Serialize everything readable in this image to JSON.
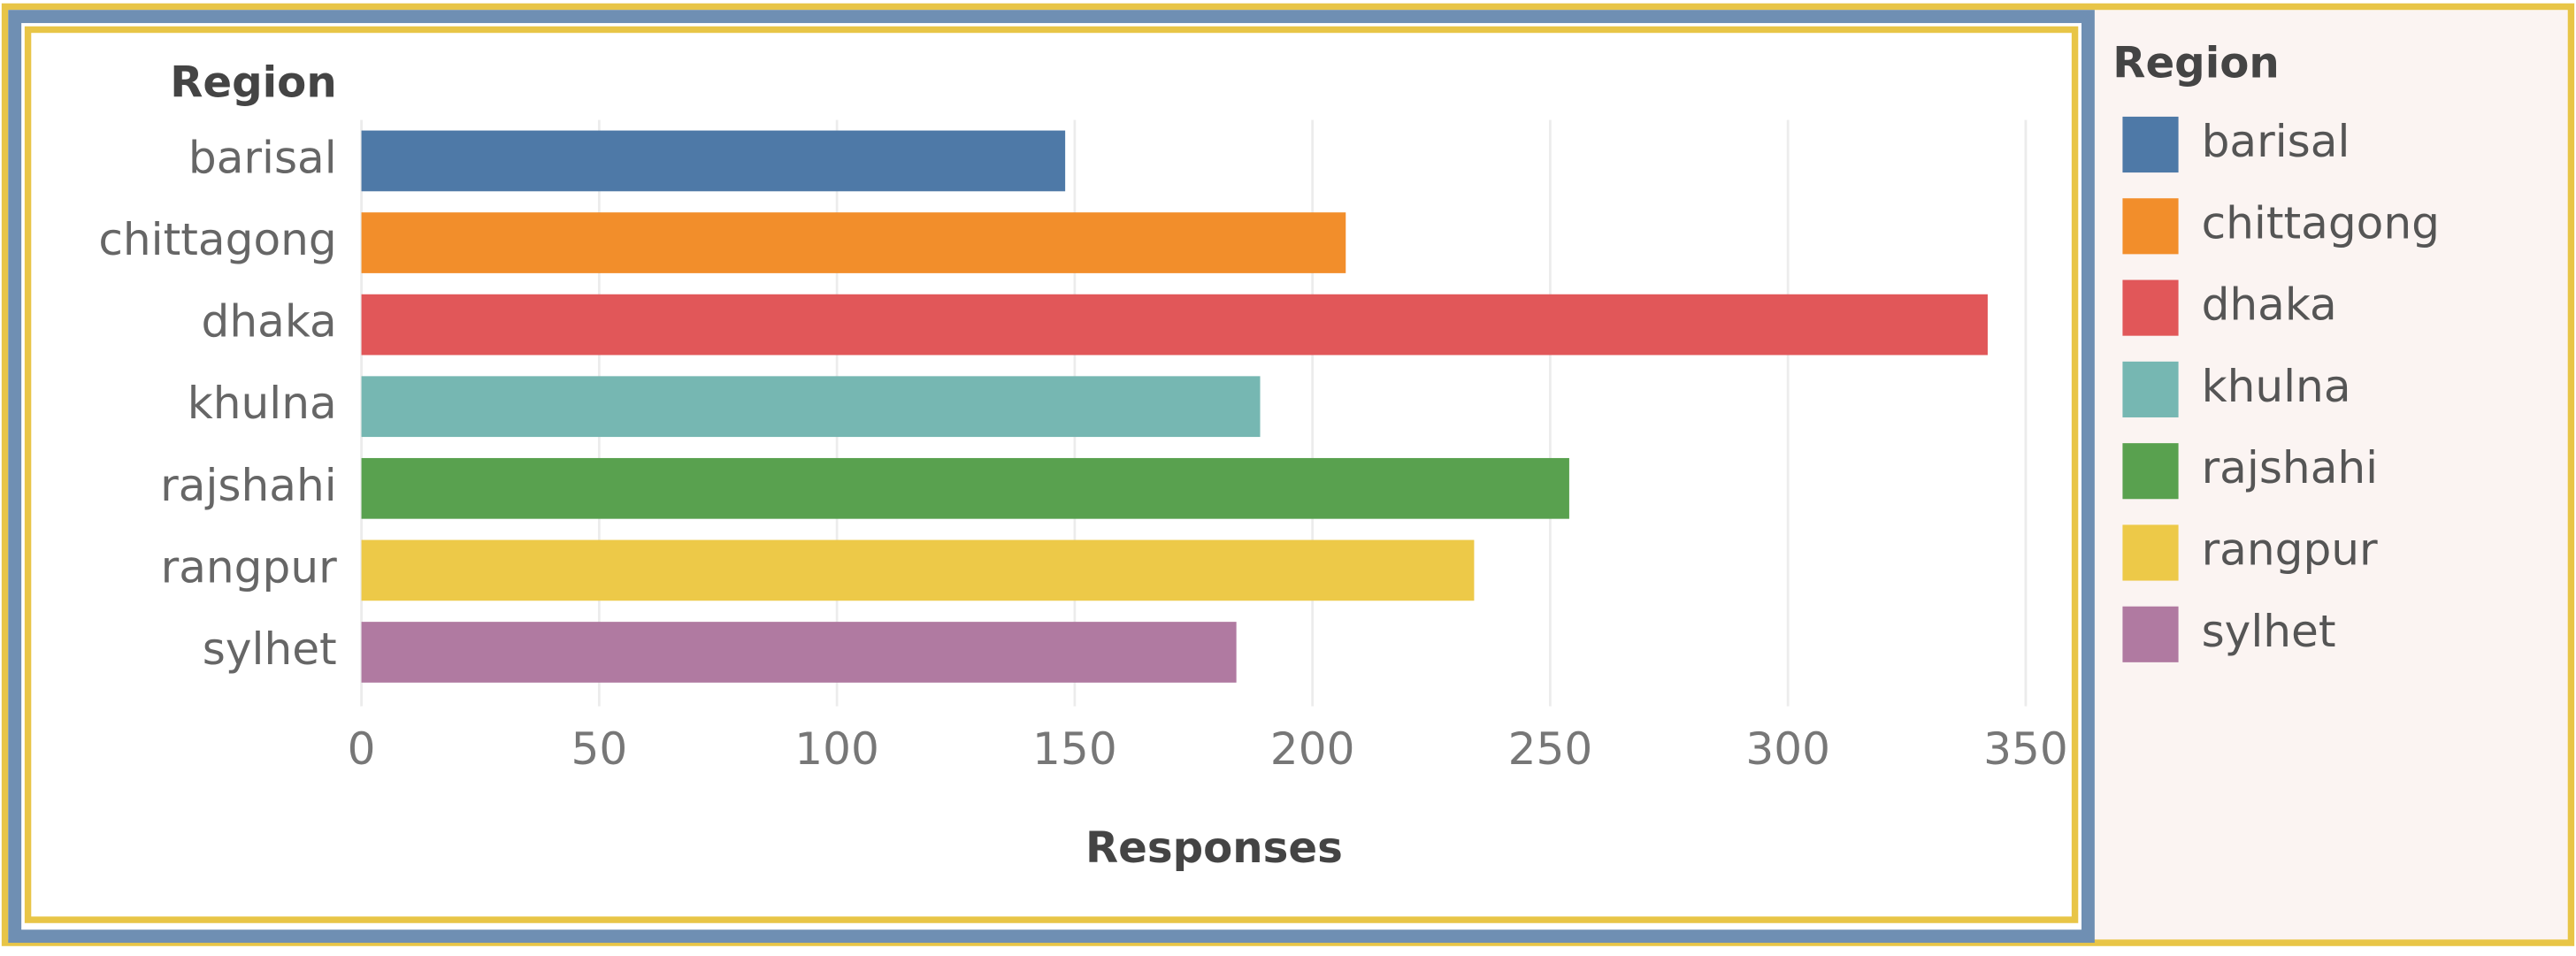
{
  "chart_data": {
    "type": "bar",
    "orientation": "horizontal",
    "y_label": "Region",
    "x_label": "Responses",
    "legend_title": "Region",
    "categories": [
      "barisal",
      "chittagong",
      "dhaka",
      "khulna",
      "rajshahi",
      "rangpur",
      "sylhet"
    ],
    "values": [
      148,
      207,
      342,
      189,
      254,
      234,
      184
    ],
    "colors": [
      "#4e79a7",
      "#f28e2b",
      "#e15759",
      "#76b7b2",
      "#59a14f",
      "#edc948",
      "#b07aa1"
    ],
    "xlim": [
      0,
      360
    ],
    "xticks": [
      0,
      50,
      100,
      150,
      200,
      250,
      300,
      350
    ],
    "grid": true,
    "legend": "right"
  }
}
